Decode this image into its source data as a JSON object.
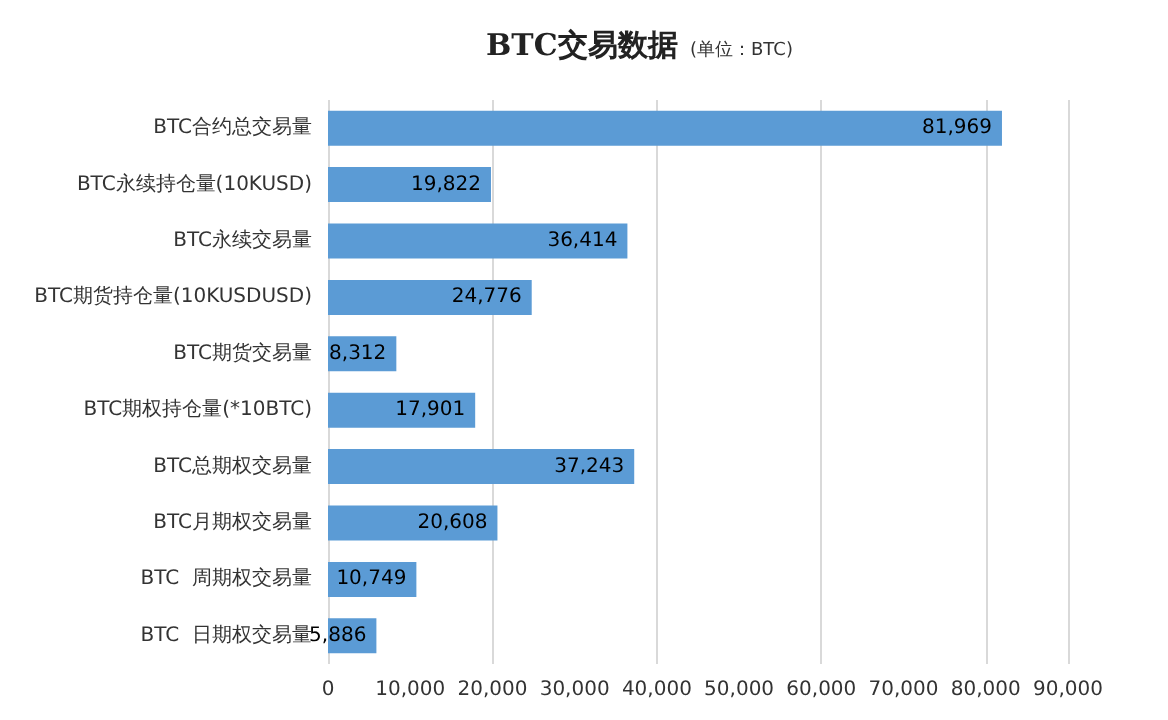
{
  "chart_data": {
    "type": "bar",
    "orientation": "horizontal",
    "title": "BTC交易数据",
    "subtitle": "(单位：BTC)",
    "categories": [
      "BTC合约总交易量",
      "BTC永续持仓量(10KUSD)",
      "BTC永续交易量",
      "BTC期货持仓量(10KUSDUSD)",
      "BTC期货交易量",
      "BTC期权持仓量(*10BTC)",
      "BTC总期权交易量",
      "BTC月期权交易量",
      "BTC  周期权交易量",
      "BTC  日期权交易量"
    ],
    "values": [
      81969,
      19822,
      36414,
      24776,
      8312,
      17901,
      37243,
      20608,
      10749,
      5886
    ],
    "value_labels": [
      "81,969",
      "19,822",
      "36,414",
      "24,776",
      "8,312",
      "17,901",
      "37,243",
      "20,608",
      "10,749",
      "5,886"
    ],
    "color": "#5b9bd5",
    "xlim": [
      0,
      90000
    ],
    "xticks": [
      0,
      {
        "value": 10000,
        "label": "10,000"
      },
      {
        "value": 20000,
        "label": "20,000"
      },
      {
        "value": 30000,
        "label": "30,000"
      },
      {
        "value": 40000,
        "label": "40,000"
      },
      {
        "value": 50000,
        "label": "50,000"
      },
      {
        "value": 60000,
        "label": "60,000"
      },
      {
        "value": 70000,
        "label": "70,000"
      },
      {
        "value": 80000,
        "label": "80,000"
      },
      {
        "value": 90000,
        "label": "90,000"
      }
    ],
    "grid": "x"
  }
}
